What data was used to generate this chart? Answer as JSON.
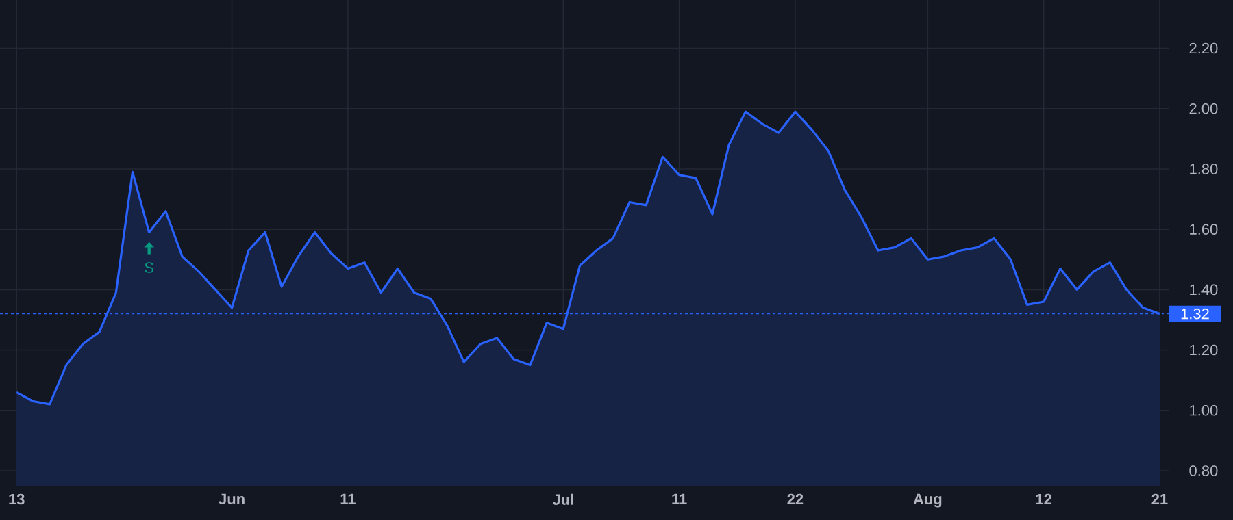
{
  "chart_data": {
    "type": "area",
    "categories": [
      "13",
      null,
      null,
      null,
      null,
      null,
      null,
      null,
      null,
      null,
      null,
      null,
      null,
      "Jun",
      null,
      null,
      null,
      null,
      null,
      null,
      "11",
      null,
      null,
      null,
      null,
      null,
      null,
      null,
      null,
      null,
      null,
      null,
      null,
      "Jul",
      null,
      null,
      null,
      null,
      null,
      null,
      "11",
      null,
      null,
      null,
      null,
      null,
      null,
      "22",
      null,
      null,
      null,
      null,
      null,
      null,
      null,
      "Aug",
      null,
      null,
      null,
      null,
      null,
      null,
      "12",
      null,
      null,
      null,
      null,
      null,
      null,
      "21"
    ],
    "series": [
      {
        "color": "#2962ff",
        "values": [
          1.06,
          1.03,
          1.02,
          1.15,
          1.22,
          1.26,
          1.39,
          1.79,
          1.59,
          1.66,
          1.51,
          1.46,
          1.4,
          1.34,
          1.53,
          1.59,
          1.41,
          1.51,
          1.59,
          1.52,
          1.47,
          1.49,
          1.39,
          1.47,
          1.39,
          1.37,
          1.28,
          1.16,
          1.22,
          1.24,
          1.17,
          1.15,
          1.29,
          1.27,
          1.48,
          1.53,
          1.57,
          1.69,
          1.68,
          1.84,
          1.78,
          1.77,
          1.65,
          1.88,
          1.99,
          1.95,
          1.92,
          1.99,
          1.93,
          1.86,
          1.73,
          1.64,
          1.53,
          1.54,
          1.57,
          1.5,
          1.51,
          1.53,
          1.54,
          1.57,
          1.5,
          1.35,
          1.36,
          1.47,
          1.4,
          1.46,
          1.49,
          1.4,
          1.34,
          1.32
        ]
      }
    ],
    "ylim": [
      0.75,
      2.36
    ],
    "yticks": [
      {
        "value": 0.8,
        "label": "0.80"
      },
      {
        "value": 1.0,
        "label": "1.00"
      },
      {
        "value": 1.2,
        "label": "1.20"
      },
      {
        "value": 1.4,
        "label": "1.40"
      },
      {
        "value": 1.6,
        "label": "1.60"
      },
      {
        "value": 1.8,
        "label": "1.80"
      },
      {
        "value": 2.0,
        "label": "2.00"
      },
      {
        "value": 2.2,
        "label": "2.20"
      }
    ],
    "grid": true,
    "ref_lines": [
      {
        "axis": "y",
        "value": 1.32,
        "label": "1.32",
        "color": "#2962ff",
        "line_style": "dashed"
      }
    ],
    "annotations": [
      "S"
    ]
  }
}
